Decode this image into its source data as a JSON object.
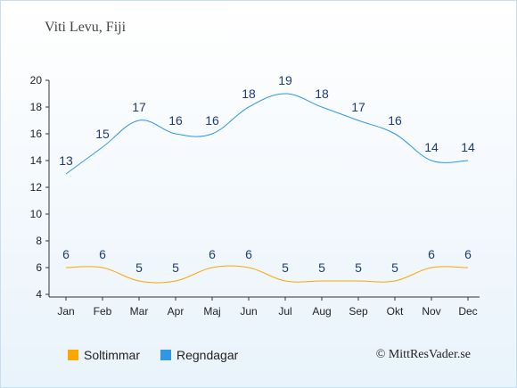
{
  "title": "Viti Levu, Fiji",
  "credit": "© MittResVader.se",
  "colors": {
    "sun": "#ffa500",
    "rain": "#2f97e6",
    "axis": "#333333",
    "label": "#1f3b70"
  },
  "legend": [
    {
      "name": "Soltimmar",
      "color": "#ffa500"
    },
    {
      "name": "Regndagar",
      "color": "#2f97e6"
    }
  ],
  "chart_data": {
    "type": "line",
    "categories": [
      "Jan",
      "Feb",
      "Mar",
      "Apr",
      "Maj",
      "Jun",
      "Jul",
      "Aug",
      "Sep",
      "Okt",
      "Nov",
      "Dec"
    ],
    "series": [
      {
        "name": "Soltimmar",
        "values": [
          6,
          6,
          5,
          5,
          6,
          6,
          5,
          5,
          5,
          5,
          6,
          6
        ]
      },
      {
        "name": "Regndagar",
        "values": [
          13,
          15,
          17,
          16,
          16,
          18,
          19,
          18,
          17,
          16,
          14,
          14
        ]
      }
    ],
    "ylim": [
      4,
      20
    ],
    "yticks": [
      4,
      6,
      8,
      10,
      12,
      14,
      16,
      18,
      20
    ],
    "grid": false,
    "legend_position": "bottom"
  }
}
